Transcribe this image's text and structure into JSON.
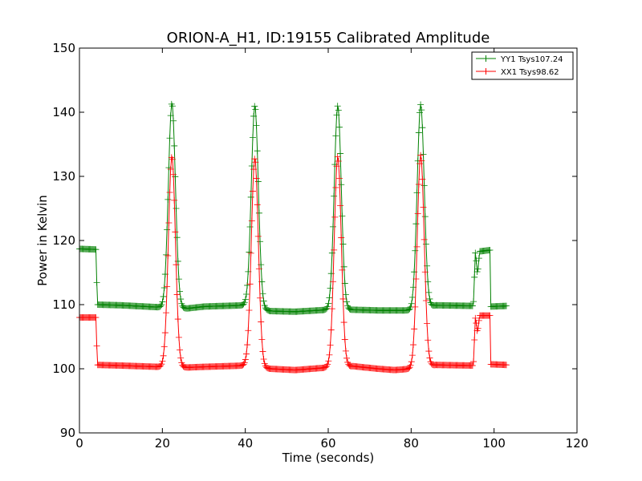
{
  "chart_data": {
    "type": "line",
    "title": "ORION-A_H1, ID:19155 Calibrated Amplitude",
    "xlabel": "Time (seconds)",
    "ylabel": "Power in Kelvin",
    "xlim": [
      0,
      120
    ],
    "ylim": [
      90,
      150
    ],
    "xticks": [
      0,
      20,
      40,
      60,
      80,
      100,
      120
    ],
    "yticks": [
      90,
      100,
      110,
      120,
      130,
      140,
      150
    ],
    "grid": false,
    "legend_position": "top-right",
    "markers": "plus",
    "series": [
      {
        "name": "YY1 Tsys107.24",
        "color": "#008000",
        "base": [
          [
            0,
            118.7
          ],
          [
            4,
            118.6
          ],
          [
            4.3,
            110.0
          ],
          [
            10,
            109.9
          ],
          [
            19,
            109.6
          ],
          [
            26,
            109.4
          ],
          [
            30,
            109.7
          ],
          [
            40,
            109.9
          ],
          [
            46,
            109.0
          ],
          [
            52,
            108.9
          ],
          [
            60,
            109.2
          ],
          [
            66,
            109.2
          ],
          [
            72,
            109.1
          ],
          [
            80,
            109.1
          ],
          [
            86,
            109.9
          ],
          [
            95,
            109.8
          ],
          [
            95.5,
            118.4
          ],
          [
            96,
            114.5
          ],
          [
            96.5,
            118.3
          ],
          [
            99,
            118.5
          ],
          [
            99.2,
            109.7
          ],
          [
            103,
            109.8
          ]
        ],
        "peaks": [
          [
            22.3,
            141.4
          ],
          [
            42.3,
            141.0
          ],
          [
            62.3,
            141.0
          ],
          [
            82.3,
            141.2
          ]
        ]
      },
      {
        "name": "XX1 Tsys98.62",
        "color": "#ff0000",
        "base": [
          [
            0,
            108.0
          ],
          [
            4,
            108.0
          ],
          [
            4.3,
            100.6
          ],
          [
            10,
            100.5
          ],
          [
            19,
            100.3
          ],
          [
            26,
            100.2
          ],
          [
            30,
            100.3
          ],
          [
            40,
            100.5
          ],
          [
            46,
            100.0
          ],
          [
            52,
            99.8
          ],
          [
            60,
            100.2
          ],
          [
            66,
            100.4
          ],
          [
            72,
            100.0
          ],
          [
            76,
            99.8
          ],
          [
            80,
            100.0
          ],
          [
            86,
            100.6
          ],
          [
            95,
            100.5
          ],
          [
            95.5,
            108.2
          ],
          [
            96,
            105.5
          ],
          [
            96.5,
            108.3
          ],
          [
            99,
            108.3
          ],
          [
            99.2,
            100.7
          ],
          [
            103,
            100.6
          ]
        ],
        "peaks": [
          [
            22.3,
            133.1
          ],
          [
            42.3,
            132.8
          ],
          [
            62.3,
            133.1
          ],
          [
            82.3,
            133.3
          ]
        ]
      }
    ]
  }
}
